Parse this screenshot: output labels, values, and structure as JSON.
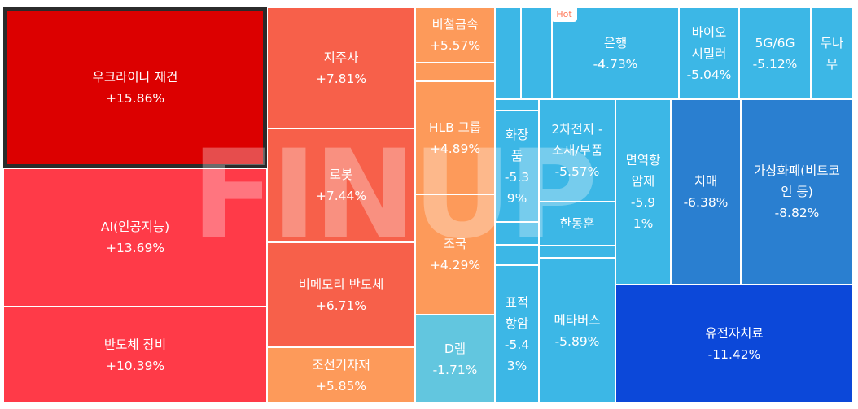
{
  "watermark": "FINUP",
  "hot_badge": "Hot",
  "tiles": [
    {
      "id": "ukraine-rebuild",
      "name": "우크라이나 재건",
      "pct": "+15.86%",
      "color": "#dc0000",
      "selected": true
    },
    {
      "id": "ai",
      "name": "AI(인공지능)",
      "pct": "+13.69%",
      "color": "#ff3a48"
    },
    {
      "id": "semi-equip",
      "name": "반도체 장비",
      "pct": "+10.39%",
      "color": "#ff3a48"
    },
    {
      "id": "holding",
      "name": "지주사",
      "pct": "+7.81%",
      "color": "#f7604a"
    },
    {
      "id": "robot",
      "name": "로봇",
      "pct": "+7.44%",
      "color": "#f7604a"
    },
    {
      "id": "non-memory",
      "name": "비메모리 반도체",
      "pct": "+6.71%",
      "color": "#f7604a"
    },
    {
      "id": "shipbuilding",
      "name": "조선기자재",
      "pct": "+5.85%",
      "color": "#fd9a5a"
    },
    {
      "id": "nonferrous",
      "name": "비철금속",
      "pct": "+5.57%",
      "color": "#fd9a5a"
    },
    {
      "id": "orange-empty",
      "name": "",
      "pct": "",
      "color": "#fd9a5a"
    },
    {
      "id": "hlb",
      "name": "HLB 그룹",
      "pct": "+4.89%",
      "color": "#fd9a5a"
    },
    {
      "id": "cho-kuk",
      "name": "조국",
      "pct": "+4.29%",
      "color": "#fd9a5a"
    },
    {
      "id": "dram",
      "name": "D램",
      "pct": "-1.71%",
      "color": "#62c6df"
    },
    {
      "id": "blue-empty-1",
      "name": "",
      "pct": "",
      "color": "#3cb7e6"
    },
    {
      "id": "blue-empty-2",
      "name": "",
      "pct": "",
      "color": "#3cb7e6"
    },
    {
      "id": "bank",
      "name": "은행",
      "pct": "-4.73%",
      "color": "#3cb7e6"
    },
    {
      "id": "biosimilar",
      "name": "바이오\n시밀러",
      "pct": "-5.04%",
      "color": "#3cb7e6"
    },
    {
      "id": "5g",
      "name": "5G/6G",
      "pct": "-5.12%",
      "color": "#3cb7e6"
    },
    {
      "id": "dunamu",
      "name": "두나\n무",
      "pct": "",
      "color": "#3cb7e6"
    },
    {
      "id": "blue-empty-3",
      "name": "",
      "pct": "",
      "color": "#3cb7e6"
    },
    {
      "id": "cosmetics",
      "name": "화장\n품",
      "pct": "-5.3\n9%",
      "color": "#3cb7e6"
    },
    {
      "id": "blue-empty-4",
      "name": "",
      "pct": "",
      "color": "#3cb7e6"
    },
    {
      "id": "blue-empty-5",
      "name": "",
      "pct": "",
      "color": "#3cb7e6"
    },
    {
      "id": "targeted-anticancer",
      "name": "표적\n항암",
      "pct": "-5.4\n3%",
      "color": "#3cb7e6"
    },
    {
      "id": "battery-materials",
      "name": "2차전지 -\n소재/부품",
      "pct": "-5.57%",
      "color": "#3cb7e6"
    },
    {
      "id": "han-dong-hoon",
      "name": "한동훈",
      "pct": "",
      "color": "#3cb7e6"
    },
    {
      "id": "blue-empty-6",
      "name": "",
      "pct": "",
      "color": "#3cb7e6"
    },
    {
      "id": "metaverse",
      "name": "메타버스",
      "pct": "-5.89%",
      "color": "#3cb7e6"
    },
    {
      "id": "immuno-anticancer",
      "name": "면역항\n암제",
      "pct": "-5.9\n1%",
      "color": "#3cb7e6"
    },
    {
      "id": "dementia",
      "name": "치매",
      "pct": "-6.38%",
      "color": "#2a7fd0"
    },
    {
      "id": "crypto",
      "name": "가상화폐(비트코\n인 등)",
      "pct": "-8.82%",
      "color": "#2a7fd0"
    },
    {
      "id": "gene-therapy",
      "name": "유전자치료",
      "pct": "-11.42%",
      "color": "#0c48d9"
    }
  ]
}
